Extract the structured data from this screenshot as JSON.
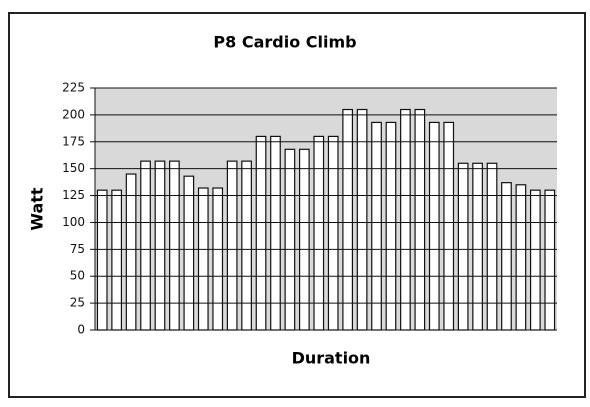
{
  "chart_data": {
    "type": "bar",
    "title": "P8 Cardio Climb",
    "x_label": "Duration",
    "y_label": "Watt",
    "values": [
      130,
      130,
      145,
      157,
      157,
      157,
      143,
      132,
      132,
      157,
      157,
      180,
      180,
      168,
      168,
      180,
      180,
      205,
      205,
      193,
      193,
      205,
      205,
      193,
      193,
      155,
      155,
      155,
      137,
      135,
      130,
      130
    ],
    "color": "#ffffff",
    "ylim": [
      0,
      225
    ],
    "yticks": [
      0,
      25,
      50,
      75,
      100,
      125,
      150,
      175,
      200,
      225
    ],
    "grid": true
  }
}
